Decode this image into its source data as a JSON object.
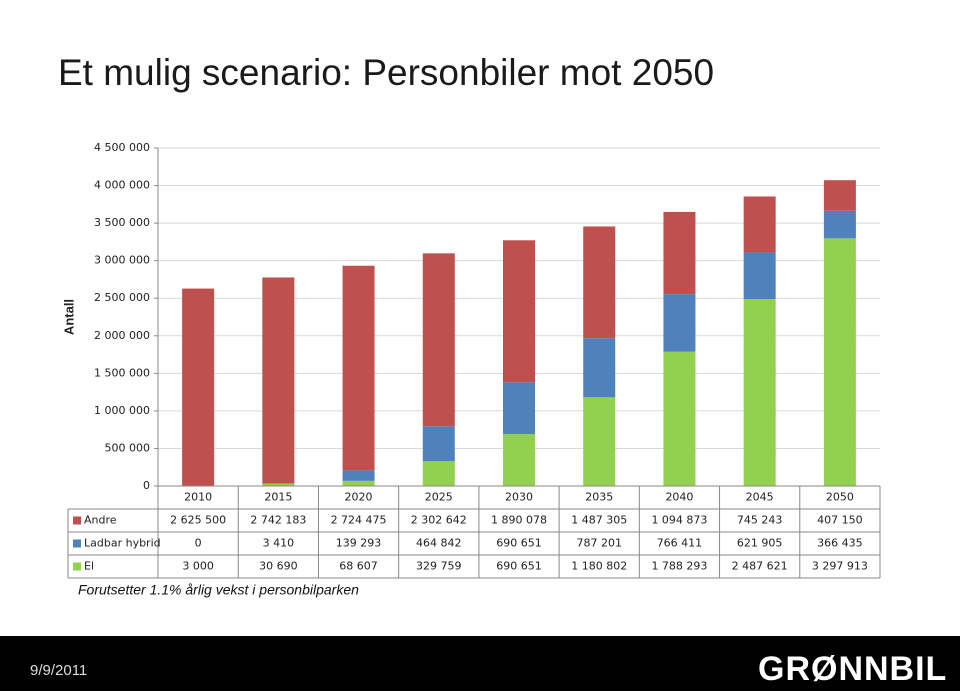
{
  "chart_data": {
    "type": "stacked_bar",
    "title": "Et mulig scenario: Personbiler mot 2050",
    "ylabel": "Antall",
    "categories": [
      "2010",
      "2015",
      "2020",
      "2025",
      "2030",
      "2035",
      "2040",
      "2045",
      "2050"
    ],
    "series": [
      {
        "name": "Andre",
        "color": "#c0504d",
        "values": [
          2625500,
          2742183,
          2724475,
          2302642,
          1890078,
          1487305,
          1094873,
          745243,
          407150
        ],
        "value_labels": [
          "2 625 500",
          "2 742 183",
          "2 724 475",
          "2 302 642",
          "1 890 078",
          "1 487 305",
          "1 094 873",
          "745 243",
          "407 150"
        ]
      },
      {
        "name": "Ladbar hybrid",
        "color": "#4f81bd",
        "values": [
          0,
          3410,
          139293,
          464842,
          690651,
          787201,
          766411,
          621905,
          366435
        ],
        "value_labels": [
          "0",
          "3 410",
          "139 293",
          "464 842",
          "690 651",
          "787 201",
          "766 411",
          "621 905",
          "366 435"
        ]
      },
      {
        "name": "El",
        "color": "#92d050",
        "values": [
          3000,
          30690,
          68607,
          329759,
          690651,
          1180802,
          1788293,
          2487621,
          3297913
        ],
        "value_labels": [
          "3 000",
          "30 690",
          "68 607",
          "329 759",
          "690 651",
          "1 180 802",
          "1 788 293",
          "2 487 621",
          "3 297 913"
        ]
      }
    ],
    "ylim": [
      0,
      4500000
    ],
    "yticks": [
      0,
      {
        "value": 500000,
        "label": "500 000"
      },
      {
        "value": 1000000,
        "label": "1 000 000"
      },
      {
        "value": 1500000,
        "label": "1 500 000"
      },
      {
        "value": 2000000,
        "label": "2 000 000"
      },
      {
        "value": 2500000,
        "label": "2 500 000"
      },
      {
        "value": 3000000,
        "label": "3 000 000"
      },
      {
        "value": 3500000,
        "label": "3 500 000"
      },
      {
        "value": 4000000,
        "label": "4 000 000"
      },
      {
        "value": 4500000,
        "label": "4 500 000"
      }
    ],
    "grid": true,
    "note": "Forutsetter 1.1% årlig vekst i personbilparken"
  },
  "footer": {
    "date": "9/9/2011",
    "logo": "GRØNNBIL"
  }
}
